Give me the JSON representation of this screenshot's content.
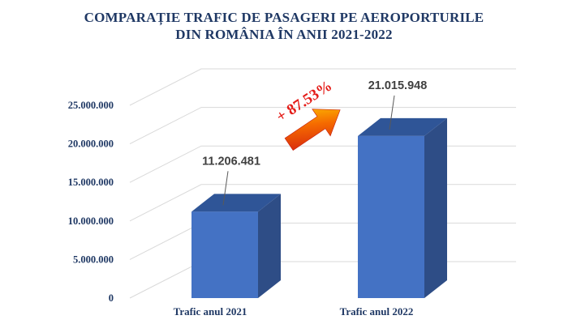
{
  "chart_data": {
    "type": "bar",
    "title_lines": [
      "COMPARAȚIE TRAFIC DE PASAGERI PE AEROPORTURILE",
      "DIN ROMÂNIA ÎN ANII 2021-2022"
    ],
    "categories": [
      "Trafic anul 2021",
      "Trafic anul 2022"
    ],
    "values": [
      11206481,
      21015948
    ],
    "data_labels": [
      "11.206.481",
      "21.015.948"
    ],
    "ylim": [
      0,
      25000000
    ],
    "yticks": [
      {
        "value": 0,
        "label": "0"
      },
      {
        "value": 5000000,
        "label": "5.000.000"
      },
      {
        "value": 10000000,
        "label": "10.000.000"
      },
      {
        "value": 15000000,
        "label": "15.000.000"
      },
      {
        "value": 20000000,
        "label": "20.000.000"
      },
      {
        "value": 25000000,
        "label": "25.000.000"
      }
    ],
    "annotation": "+ 87.53%",
    "grid": true,
    "style": "3d-column",
    "colors": {
      "bar_front": "#4472c4",
      "bar_side": "#2e4d86",
      "bar_top": "#2f5597",
      "title": "#1f3864",
      "axis_text": "#1f3864",
      "data_label": "#404040",
      "annotation": "#e41b17",
      "grid": "#d9d9d9"
    }
  }
}
